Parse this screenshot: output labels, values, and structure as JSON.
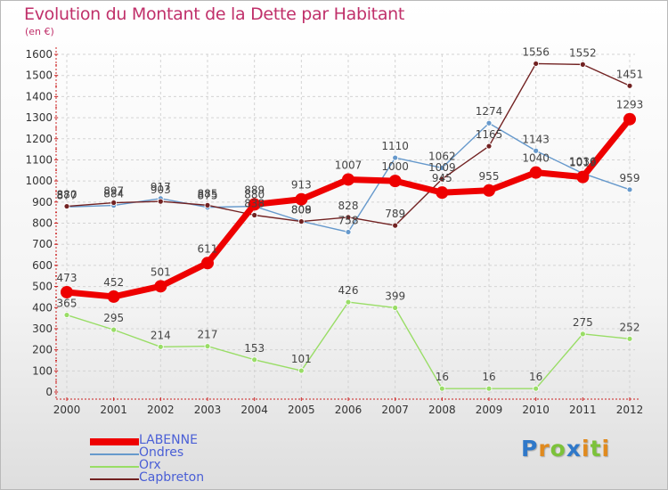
{
  "title": "Evolution du Montant de la Dette par Habitant",
  "subtitle": "(en €)",
  "logo_text": "Proxiti",
  "logo_colors": [
    "#2f78c9",
    "#e08a1e",
    "#7cc23a",
    "#2f78c9",
    "#e08a1e",
    "#7cc23a",
    "#e08a1e"
  ],
  "chart_data": {
    "type": "line",
    "title": "Evolution du Montant de la Dette par Habitant",
    "ylabel": "(en €)",
    "xlabel": "",
    "ylim": [
      0,
      1600
    ],
    "yticks": [
      0,
      100,
      200,
      300,
      400,
      500,
      600,
      700,
      800,
      900,
      1000,
      1100,
      1200,
      1300,
      1400,
      1500,
      1600
    ],
    "grid": true,
    "legend_position": "bottom-left",
    "categories": [
      "2000",
      "2001",
      "2002",
      "2003",
      "2004",
      "2005",
      "2006",
      "2007",
      "2008",
      "2009",
      "2010",
      "2011",
      "2012"
    ],
    "series": [
      {
        "name": "Orx",
        "color": "#99dd66",
        "values": [
          365,
          295,
          214,
          217,
          153,
          101,
          426,
          399,
          16,
          16,
          16,
          275,
          252
        ]
      },
      {
        "name": "Ondres",
        "color": "#6699cc",
        "values": [
          877,
          884,
          917,
          875,
          880,
          809,
          758,
          1110,
          1062,
          1274,
          1143,
          1036,
          959
        ]
      },
      {
        "name": "Capbreton",
        "color": "#722222",
        "values": [
          880,
          897,
          903,
          885,
          838,
          808,
          828,
          789,
          1009,
          1165,
          1556,
          1552,
          1451
        ]
      },
      {
        "name": "LABENNE",
        "color": "#ee0000",
        "values": [
          473,
          452,
          501,
          611,
          889,
          913,
          1007,
          1000,
          945,
          955,
          1040,
          1019,
          1293
        ]
      }
    ],
    "legend": [
      "LABENNE",
      "Ondres",
      "Orx",
      "Capbreton"
    ]
  }
}
